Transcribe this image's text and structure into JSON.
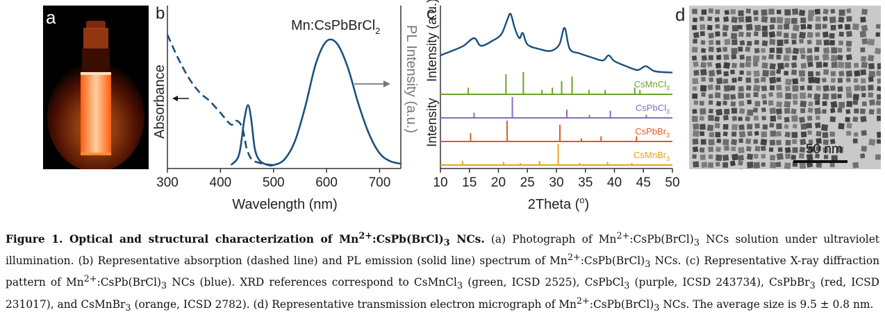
{
  "panel_labels": {
    "a": "a",
    "b": "b",
    "c": "c",
    "d": "d"
  },
  "panel_b": {
    "sample_label_main": "Mn:CsPbBrCl",
    "sample_label_sub": "2",
    "left_axis_label": "Absorbance",
    "right_axis_label": "PL Intensity (a.u.)",
    "xlabel": "Wavelength (nm)",
    "xticks": [
      "300",
      "400",
      "500",
      "600",
      "700"
    ]
  },
  "panel_c": {
    "ylabel_top": "Intensity (a.u.)",
    "ylabel_bottom": "Intensity",
    "xlabel_main": "2Theta (",
    "xlabel_unit": "o",
    "xlabel_close": ")",
    "xticks": [
      "10",
      "15",
      "20",
      "25",
      "30",
      "35",
      "40",
      "45",
      "50"
    ],
    "references": [
      {
        "main": "CsMnCl",
        "sub": "3",
        "color": "#6aa32a"
      },
      {
        "main": "CsPbCl",
        "sub": "3",
        "color": "#8a6bbf"
      },
      {
        "main": "CsPbBr",
        "sub": "3",
        "color": "#e05a25"
      },
      {
        "main": "CsMnBr",
        "sub": "3",
        "color": "#e8a317"
      }
    ]
  },
  "panel_d": {
    "scale_bar": "50 nm"
  },
  "chart_data": [
    {
      "type": "line",
      "panel": "b",
      "xlabel": "Wavelength (nm)",
      "ylabel": "Absorbance",
      "xlim": [
        300,
        740
      ],
      "series": [
        {
          "values_x": [
            300,
            320,
            340,
            360,
            380,
            400,
            420,
            430,
            440,
            445,
            450,
            460,
            480,
            500
          ],
          "values_y": [
            1.0,
            0.82,
            0.67,
            0.56,
            0.49,
            0.4,
            0.31,
            0.34,
            0.3,
            0.22,
            0.12,
            0.04,
            0.01,
            0.0
          ],
          "style": "dashed",
          "color": "#1a4f7d"
        },
        {
          "values_x": [
            420,
            435,
            445,
            452,
            458,
            465,
            475,
            490,
            500,
            520,
            540,
            560,
            580,
            600,
            620,
            640,
            660,
            680,
            700,
            720,
            740
          ],
          "values_y": [
            0.0,
            0.08,
            0.35,
            0.46,
            0.35,
            0.12,
            0.03,
            0.0,
            0.0,
            0.04,
            0.18,
            0.45,
            0.78,
            0.95,
            0.93,
            0.75,
            0.47,
            0.24,
            0.09,
            0.03,
            0.01
          ],
          "style": "solid",
          "color": "#1a4f7d"
        }
      ]
    },
    {
      "type": "line",
      "panel": "c",
      "xlabel": "2Theta (o)",
      "xlim": [
        10,
        50
      ],
      "series": [
        {
          "x": [
            10,
            12,
            14,
            15.8,
            17,
            19,
            20.5,
            21.5,
            22.1,
            22.8,
            23.6,
            24.2,
            25,
            27,
            29,
            30.5,
            31.4,
            32.3,
            34,
            36,
            38,
            39,
            40,
            42,
            44,
            45.4,
            47,
            50
          ],
          "y": [
            0.35,
            0.42,
            0.5,
            0.62,
            0.5,
            0.58,
            0.68,
            0.9,
            1.0,
            0.78,
            0.62,
            0.7,
            0.52,
            0.45,
            0.42,
            0.52,
            0.78,
            0.45,
            0.38,
            0.32,
            0.27,
            0.35,
            0.26,
            0.18,
            0.12,
            0.18,
            0.1,
            0.08
          ],
          "color": "#1a4f7d"
        },
        {
          "name": "CsMnCl3",
          "color": "#6aa32a",
          "peaks": [
            [
              14.8,
              0.3
            ],
            [
              21.3,
              0.9
            ],
            [
              24.3,
              1.0
            ],
            [
              27.5,
              0.2
            ],
            [
              29.3,
              0.3
            ],
            [
              30.9,
              0.6
            ],
            [
              32.7,
              0.8
            ],
            [
              35.6,
              0.2
            ],
            [
              38.4,
              0.2
            ],
            [
              43.5,
              0.3
            ],
            [
              44.4,
              0.2
            ]
          ]
        },
        {
          "name": "CsPbCl3",
          "color": "#8a6bbf",
          "peaks": [
            [
              15.8,
              0.25
            ],
            [
              22.4,
              1.0
            ],
            [
              31.8,
              0.4
            ],
            [
              35.7,
              0.15
            ],
            [
              39.3,
              0.35
            ],
            [
              45.5,
              0.15
            ]
          ]
        },
        {
          "name": "CsPbBr3",
          "color": "#e05a25",
          "peaks": [
            [
              15.2,
              0.4
            ],
            [
              21.5,
              1.0
            ],
            [
              30.6,
              0.8
            ],
            [
              34.3,
              0.15
            ],
            [
              37.7,
              0.25
            ],
            [
              43.8,
              0.25
            ]
          ]
        },
        {
          "name": "CsMnBr3",
          "color": "#e8a317",
          "peaks": [
            [
              13.8,
              0.2
            ],
            [
              20.9,
              0.15
            ],
            [
              23.8,
              0.1
            ],
            [
              27.1,
              0.2
            ],
            [
              30.3,
              1.0
            ],
            [
              34.0,
              0.1
            ],
            [
              38.8,
              0.15
            ],
            [
              43.0,
              0.1
            ]
          ]
        }
      ]
    }
  ],
  "caption": {
    "fig": "Figure 1.",
    "t1": " Optical and structural characterization of Mn",
    "s1": "2+",
    "t2": ":CsPb(BrCl)",
    "s2": "3",
    "t3": " NCs.",
    "t4": " (a) Photograph of Mn",
    "s3": "2+",
    "t5": ":CsPb(BrCl)",
    "s4": "3",
    "t6": " NCs solution under ultraviolet illumination. (b) Representative absorption (dashed line) and PL emission (solid line) spectrum of Mn",
    "s5": "2+",
    "t7": ":CsPb(BrCl)",
    "s6": "3",
    "t8": " NCs. (c) Representative X-ray diffraction pattern of Mn",
    "s7": "2+",
    "t9": ":CsPb(BrCl)",
    "s8": "3",
    "t10": " NCs (blue). XRD references correspond to CsMnCl",
    "s9": "3",
    "t11": " (green, ICSD 2525), CsPbCl",
    "s10": "3",
    "t12": " (purple, ICSD 243734), CsPbBr",
    "s11": "3",
    "t13": " (red, ICSD 231017), and CsMnBr",
    "s12": "3",
    "t14": " (orange, ICSD 2782). (d) Representative transmission electron micrograph of Mn",
    "s13": "2+",
    "t15": ":CsPb(BrCl)",
    "s14": "3",
    "t16": " NCs. The average size is 9.5 ± 0.8 nm."
  }
}
